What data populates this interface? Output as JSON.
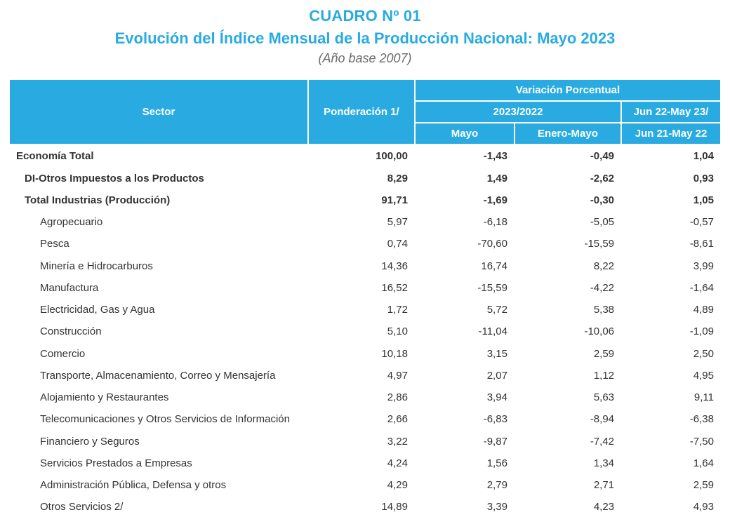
{
  "title": {
    "line1": "CUADRO Nº 01",
    "line2": "Evolución del Índice Mensual de la Producción Nacional: Mayo 2023",
    "line3": "(Año base 2007)"
  },
  "header": {
    "sector": "Sector",
    "ponderacion": "Ponderación 1/",
    "variacion": "Variación Porcentual",
    "periodo": "2023/2022",
    "mayo": "Mayo",
    "enero_mayo": "Enero-Mayo",
    "jun_col1": "Jun 22-May 23/",
    "jun_col2": "Jun 21-May 22"
  },
  "rows": [
    {
      "cls": "total",
      "label": "Economía Total",
      "p": "100,00",
      "m": "-1,43",
      "em": "-0,49",
      "j": "1,04"
    },
    {
      "cls": "subtotal",
      "label": "DI-Otros Impuestos a los Productos",
      "p": "8,29",
      "m": "1,49",
      "em": "-2,62",
      "j": "0,93"
    },
    {
      "cls": "subtotal",
      "label": "Total  Industrias (Producción)",
      "p": "91,71",
      "m": "-1,69",
      "em": "-0,30",
      "j": "1,05"
    },
    {
      "cls": "detail",
      "label": "Agropecuario",
      "p": "5,97",
      "m": "-6,18",
      "em": "-5,05",
      "j": "-0,57"
    },
    {
      "cls": "detail",
      "label": "Pesca",
      "p": "0,74",
      "m": "-70,60",
      "em": "-15,59",
      "j": "-8,61"
    },
    {
      "cls": "detail",
      "label": "Minería e Hidrocarburos",
      "p": "14,36",
      "m": "16,74",
      "em": "8,22",
      "j": "3,99"
    },
    {
      "cls": "detail",
      "label": "Manufactura",
      "p": "16,52",
      "m": "-15,59",
      "em": "-4,22",
      "j": "-1,64"
    },
    {
      "cls": "detail",
      "label": "Electricidad, Gas y Agua",
      "p": "1,72",
      "m": "5,72",
      "em": "5,38",
      "j": "4,89"
    },
    {
      "cls": "detail",
      "label": "Construcción",
      "p": "5,10",
      "m": "-11,04",
      "em": "-10,06",
      "j": "-1,09"
    },
    {
      "cls": "detail",
      "label": "Comercio",
      "p": "10,18",
      "m": "3,15",
      "em": "2,59",
      "j": "2,50"
    },
    {
      "cls": "detail",
      "label": "Transporte, Almacenamiento, Correo y Mensajería",
      "p": "4,97",
      "m": "2,07",
      "em": "1,12",
      "j": "4,95"
    },
    {
      "cls": "detail",
      "label": "Alojamiento y Restaurantes",
      "p": "2,86",
      "m": "3,94",
      "em": "5,63",
      "j": "9,11"
    },
    {
      "cls": "detail",
      "label": "Telecomunicaciones y Otros Servicios de Información",
      "p": "2,66",
      "m": "-6,83",
      "em": "-8,94",
      "j": "-6,38"
    },
    {
      "cls": "detail",
      "label": "Financiero y Seguros",
      "p": "3,22",
      "m": "-9,87",
      "em": "-7,42",
      "j": "-7,50"
    },
    {
      "cls": "detail",
      "label": "Servicios Prestados a Empresas",
      "p": "4,24",
      "m": "1,56",
      "em": "1,34",
      "j": "1,64"
    },
    {
      "cls": "detail",
      "label": "Administración Pública, Defensa y otros",
      "p": "4,29",
      "m": "2,79",
      "em": "2,71",
      "j": "2,59"
    },
    {
      "cls": "detail",
      "label": "Otros Servicios 2/",
      "p": "14,89",
      "m": "3,39",
      "em": "4,23",
      "j": "4,93"
    }
  ],
  "styling": {
    "accent_color": "#29abe2",
    "header_text_color": "#ffffff",
    "body_text_color": "#333333",
    "subtitle_color": "#6a6a6a",
    "font_family": "Arial",
    "title_fontsize_pt": 16,
    "body_fontsize_pt": 11
  }
}
